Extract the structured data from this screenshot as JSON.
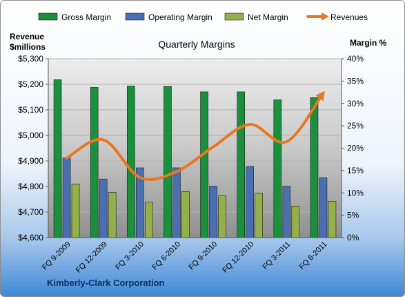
{
  "chart_data": {
    "type": "bar",
    "title": "Quarterly Margins",
    "company": "Kimberly-Clark Corporation",
    "left_axis_label_line1": "Revenue",
    "left_axis_label_line2": "$millions",
    "right_axis_label": "Margin %",
    "categories": [
      "FQ 9-2009",
      "FQ 12-2009",
      "FQ 3-2010",
      "FQ 6-2010",
      "FQ 9-2010",
      "FQ 12-2010",
      "FQ 3-2011",
      "FQ 6-2011"
    ],
    "left_ylim": [
      4600,
      5300
    ],
    "left_ticks": [
      "$4,600",
      "$4,700",
      "$4,800",
      "$4,900",
      "$5,000",
      "$5,100",
      "$5,200",
      "$5,300"
    ],
    "right_ylim": [
      0,
      40
    ],
    "right_ticks": [
      "0%",
      "5%",
      "10%",
      "15%",
      "20%",
      "25%",
      "30%",
      "35%",
      "40%"
    ],
    "grid": true,
    "legend_position": "top",
    "series": [
      {
        "name": "Gross Margin",
        "kind": "bar",
        "axis": "right",
        "color": "#1a8f3c",
        "values": [
          35.3,
          33.6,
          33.9,
          33.8,
          32.6,
          32.6,
          30.8,
          31.3
        ]
      },
      {
        "name": "Operating Margin",
        "kind": "bar",
        "axis": "right",
        "color": "#4a6fb0",
        "values": [
          17.8,
          13.1,
          15.6,
          15.6,
          11.5,
          15.9,
          11.5,
          13.4
        ]
      },
      {
        "name": "Net Margin",
        "kind": "bar",
        "axis": "right",
        "color": "#93b04a",
        "values": [
          12.0,
          10.1,
          7.9,
          10.3,
          9.4,
          9.9,
          7.0,
          8.1
        ]
      },
      {
        "name": "Revenues",
        "kind": "line",
        "axis": "left",
        "color": "#e87722",
        "values": [
          4911,
          4983,
          4835,
          4858,
          4955,
          5043,
          4975,
          5165
        ]
      }
    ]
  }
}
